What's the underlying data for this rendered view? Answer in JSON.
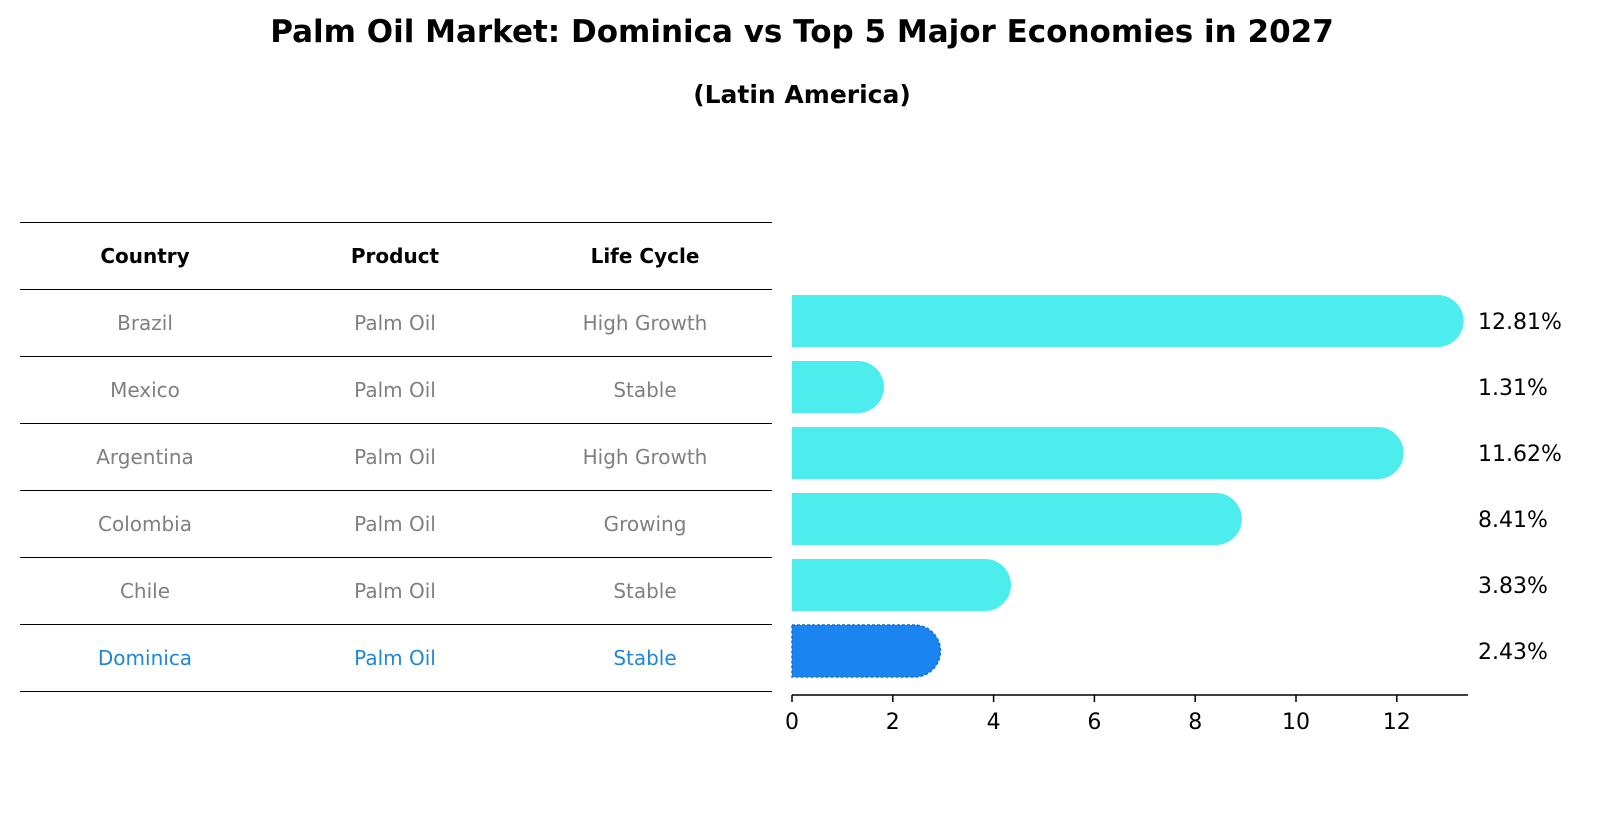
{
  "title": "Palm Oil Market: Dominica vs Top 5 Major Economies in 2027",
  "subtitle": "(Latin America)",
  "table": {
    "headers": [
      "Country",
      "Product",
      "Life Cycle"
    ],
    "rows": [
      {
        "country": "Brazil",
        "product": "Palm Oil",
        "life_cycle": "High Growth"
      },
      {
        "country": "Mexico",
        "product": "Palm Oil",
        "life_cycle": "Stable"
      },
      {
        "country": "Argentina",
        "product": "Palm Oil",
        "life_cycle": "High Growth"
      },
      {
        "country": "Colombia",
        "product": "Palm Oil",
        "life_cycle": "Growing"
      },
      {
        "country": "Chile",
        "product": "Palm Oil",
        "life_cycle": "Stable"
      },
      {
        "country": "Dominica",
        "product": "Palm Oil",
        "life_cycle": "Stable"
      }
    ]
  },
  "colors": {
    "bar": "#4deded",
    "highlight_bar": "#1a84f0",
    "highlight_text": "#1f87d6",
    "muted_text": "#808080"
  },
  "chart_data": {
    "type": "bar",
    "orientation": "horizontal",
    "categories": [
      "Brazil",
      "Mexico",
      "Argentina",
      "Colombia",
      "Chile",
      "Dominica"
    ],
    "values": [
      12.81,
      1.31,
      11.62,
      8.41,
      3.83,
      2.43
    ],
    "value_labels": [
      "12.81%",
      "1.31%",
      "11.62%",
      "8.41%",
      "3.83%",
      "2.43%"
    ],
    "highlight": "Dominica",
    "xlim": [
      0,
      13.5
    ],
    "xticks": [
      0,
      2,
      4,
      6,
      8,
      10,
      12
    ],
    "xtick_labels": [
      "0",
      "2",
      "4",
      "6",
      "8",
      "10",
      "12"
    ],
    "xlabel": "",
    "ylabel": "",
    "grid": false
  }
}
